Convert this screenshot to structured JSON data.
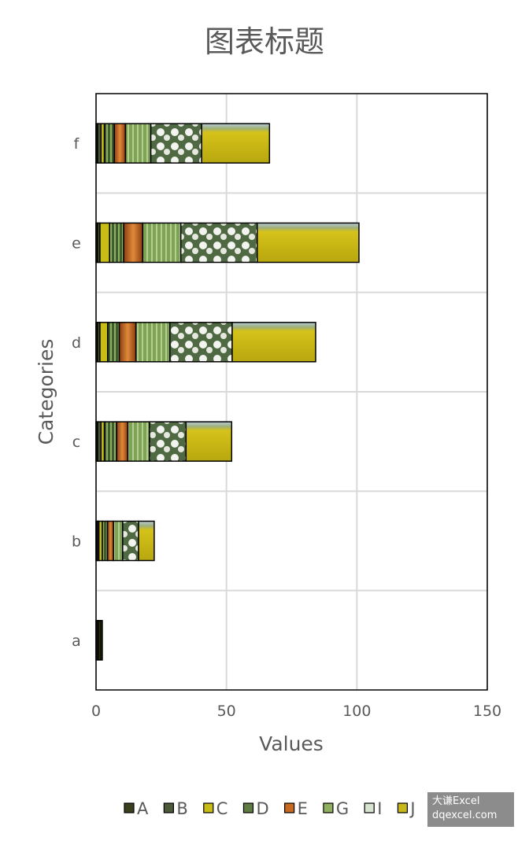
{
  "chart_data": {
    "type": "bar",
    "orientation": "horizontal",
    "stacked": true,
    "title": "图表标题",
    "xlabel": "Values",
    "ylabel": "Categories",
    "xlim": [
      0,
      150
    ],
    "x_ticks": [
      "0",
      "50",
      "100",
      "150"
    ],
    "categories": [
      "a",
      "b",
      "c",
      "d",
      "e",
      "f"
    ],
    "grid": true,
    "legend_position": "bottom",
    "series": [
      {
        "name": "A",
        "color": "#3a3f1e",
        "values": [
          0.6,
          0.5,
          0.6,
          0.6,
          0.6,
          0.6
        ]
      },
      {
        "name": "B",
        "color": "#4d5a3a",
        "values": [
          0.6,
          0.6,
          1.3,
          0.9,
          0.9,
          1.3
        ]
      },
      {
        "name": "C",
        "color": "#c8bd16",
        "values": [
          0.6,
          1.3,
          1.3,
          3,
          3.7,
          1.3
        ]
      },
      {
        "name": "D",
        "color": "#5f7d43",
        "values": [
          0.6,
          2,
          4.7,
          4.4,
          5.4,
          3.8
        ]
      },
      {
        "name": "E",
        "color": "#c86a1e",
        "values": [
          0,
          2.3,
          4.3,
          6.4,
          7.3,
          4.3
        ]
      },
      {
        "name": "G",
        "color": "#8fb060",
        "values": [
          0,
          3.5,
          8.3,
          13,
          14.6,
          9.7
        ]
      },
      {
        "name": "I",
        "color": "#d8e4d0",
        "values": [
          0,
          6.1,
          14,
          23.9,
          29.3,
          19.5
        ]
      },
      {
        "name": "J",
        "color": "#c8b81c",
        "values": [
          0,
          6,
          17.5,
          32,
          39,
          26
        ]
      }
    ]
  },
  "watermark": {
    "line1": "大谦Excel",
    "line2": "dqexcel.com"
  }
}
